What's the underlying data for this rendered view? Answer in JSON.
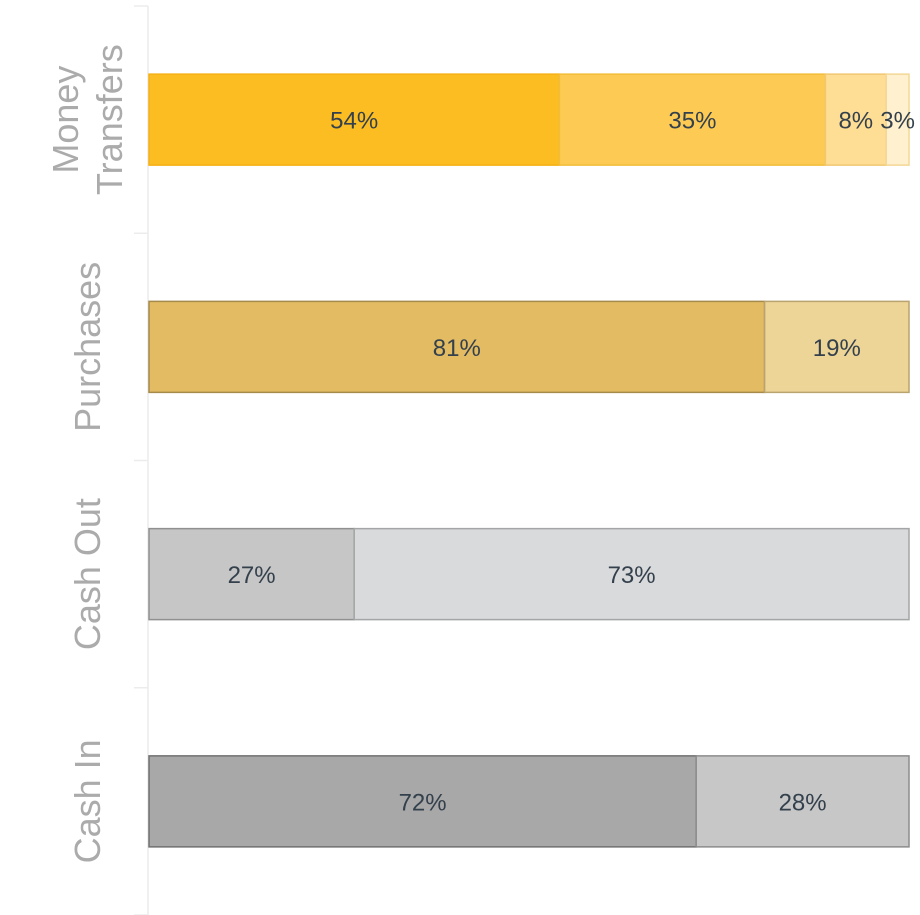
{
  "chart_data": {
    "type": "bar",
    "orientation": "horizontal",
    "stacked": true,
    "title": "",
    "xlabel": "",
    "ylabel": "",
    "xlim": [
      0,
      100
    ],
    "grid": false,
    "categories": [
      {
        "label_lines": [
          "Money",
          "Transfers"
        ],
        "segments": [
          {
            "value": 54,
            "label": "54%",
            "color": "#fcbd22",
            "stroke": "#f5b014"
          },
          {
            "value": 35,
            "label": "35%",
            "color": "#fdcb54",
            "stroke": "#f3bd3a"
          },
          {
            "value": 8,
            "label": "8%",
            "color": "#fedd94",
            "stroke": "#f1c871"
          },
          {
            "value": 3,
            "label": "3%",
            "color": "#fff1cf",
            "stroke": "#f3d795"
          }
        ]
      },
      {
        "label_lines": [
          "Purchases"
        ],
        "segments": [
          {
            "value": 81,
            "label": "81%",
            "color": "#e2bb63",
            "stroke": "#a58a4c"
          },
          {
            "value": 19,
            "label": "19%",
            "color": "#edd497",
            "stroke": "#b9a470"
          }
        ]
      },
      {
        "label_lines": [
          "Cash Out"
        ],
        "segments": [
          {
            "value": 27,
            "label": "27%",
            "color": "#c5c6c5",
            "stroke": "#8f908f"
          },
          {
            "value": 73,
            "label": "73%",
            "color": "#d9dadb",
            "stroke": "#a4a5a6"
          }
        ]
      },
      {
        "label_lines": [
          "Cash In"
        ],
        "segments": [
          {
            "value": 72,
            "label": "72%",
            "color": "#a7a8a7",
            "stroke": "#6f706f"
          },
          {
            "value": 28,
            "label": "28%",
            "color": "#c6c7c6",
            "stroke": "#8b8c8b"
          }
        ]
      }
    ]
  }
}
